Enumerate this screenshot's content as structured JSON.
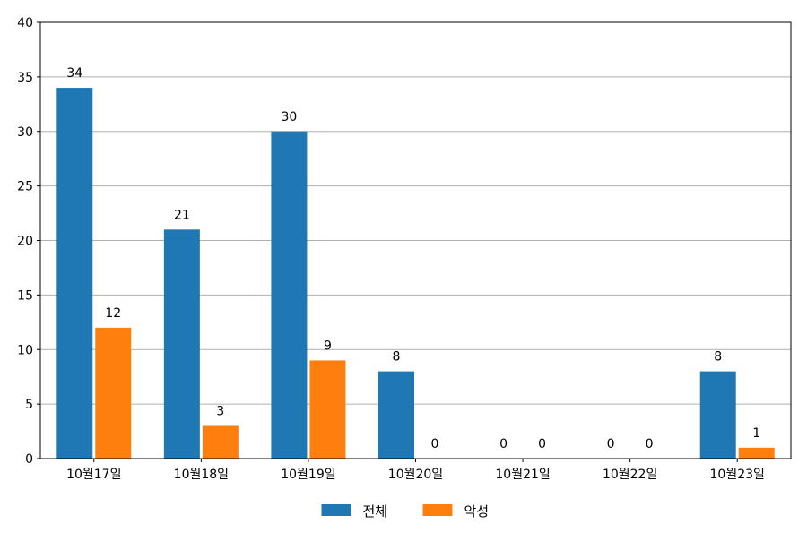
{
  "chart_data": {
    "type": "bar",
    "title": "",
    "xlabel": "",
    "ylabel": "",
    "categories": [
      "10월17일",
      "10월18일",
      "10월19일",
      "10월20일",
      "10월21일",
      "10월22일",
      "10월23일"
    ],
    "series": [
      {
        "name": "전체",
        "values": [
          34,
          21,
          30,
          8,
          0,
          0,
          8
        ],
        "color": "#1f77b4"
      },
      {
        "name": "악성",
        "values": [
          12,
          3,
          9,
          0,
          0,
          0,
          1
        ],
        "color": "#ff7f0e"
      }
    ],
    "ylim": [
      0,
      40
    ],
    "yticks": [
      0,
      5,
      10,
      15,
      20,
      25,
      30,
      35,
      40
    ],
    "grid": "horizontal",
    "legend_position": "bottom-center",
    "data_labels": true
  }
}
